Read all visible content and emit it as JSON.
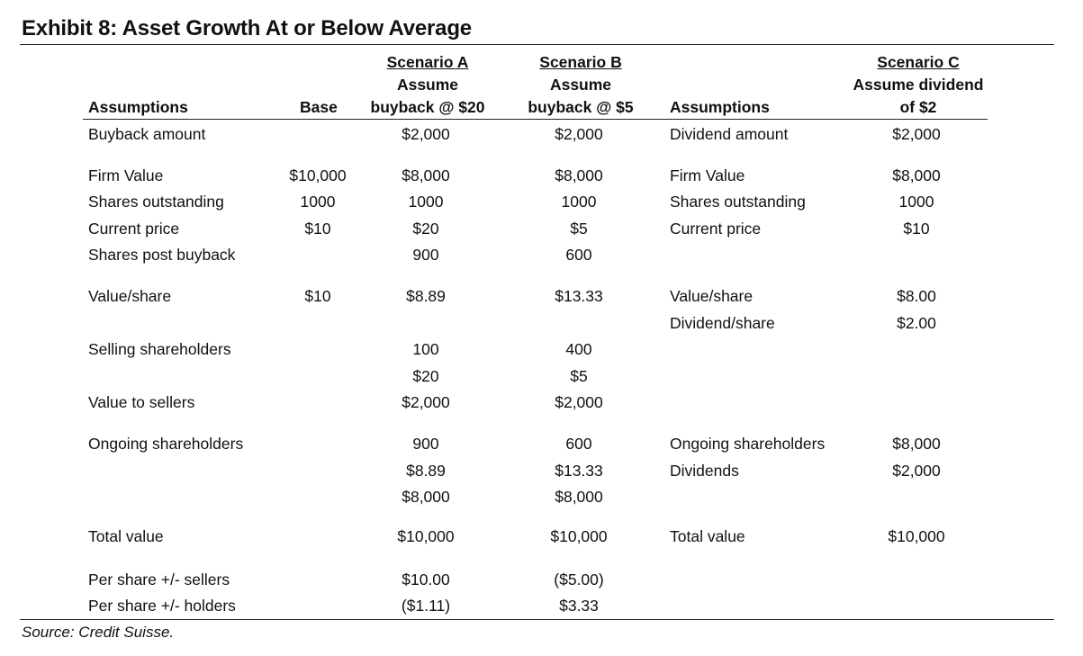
{
  "title": "Exhibit 8: Asset Growth At or Below Average",
  "source": "Source: Credit Suisse.",
  "headers": {
    "assumptions_left": "Assumptions",
    "base": "Base",
    "scenario_a": {
      "title": "Scenario A",
      "line2": "Assume",
      "line3": "buyback @ $20"
    },
    "scenario_b": {
      "title": "Scenario B",
      "line2": "Assume",
      "line3": "buyback @ $5"
    },
    "assumptions_right": "Assumptions",
    "scenario_c": {
      "title": "Scenario C",
      "line2": "Assume dividend",
      "line3": "of $2"
    }
  },
  "rows": [
    {
      "label": "Buyback amount",
      "base": "",
      "a": "$2,000",
      "b": "$2,000",
      "c_label": "Dividend amount",
      "c": "$2,000"
    },
    {
      "label": "Firm Value",
      "base": "$10,000",
      "a": "$8,000",
      "b": "$8,000",
      "c_label": "Firm Value",
      "c": "$8,000"
    },
    {
      "label": "Shares outstanding",
      "base": "1000",
      "a": "1000",
      "b": "1000",
      "c_label": "Shares outstanding",
      "c": "1000"
    },
    {
      "label": "Current price",
      "base": "$10",
      "a": "$20",
      "b": "$5",
      "c_label": "Current price",
      "c": "$10"
    },
    {
      "label": "Shares post buyback",
      "base": "",
      "a": "900",
      "b": "600",
      "c_label": "",
      "c": ""
    },
    {
      "label": "Value/share",
      "base": "$10",
      "a": "$8.89",
      "b": "$13.33",
      "c_label": "Value/share",
      "c": "$8.00"
    },
    {
      "label": "",
      "base": "",
      "a": "",
      "b": "",
      "c_label": "Dividend/share",
      "c": "$2.00"
    },
    {
      "label": "Selling shareholders",
      "base": "",
      "a": "100",
      "b": "400",
      "c_label": "",
      "c": ""
    },
    {
      "label": "",
      "base": "",
      "a": "$20",
      "b": "$5",
      "c_label": "",
      "c": ""
    },
    {
      "label": "Value to sellers",
      "base": "",
      "a": "$2,000",
      "b": "$2,000",
      "c_label": "",
      "c": ""
    },
    {
      "label": "Ongoing shareholders",
      "base": "",
      "a": "900",
      "b": "600",
      "c_label": "Ongoing shareholders",
      "c": "$8,000"
    },
    {
      "label": "",
      "base": "",
      "a": "$8.89",
      "b": "$13.33",
      "c_label": "Dividends",
      "c": "$2,000"
    },
    {
      "label": "",
      "base": "",
      "a": "$8,000",
      "b": "$8,000",
      "c_label": "",
      "c": ""
    },
    {
      "label": "Total value",
      "base": "",
      "a": "$10,000",
      "b": "$10,000",
      "c_label": "Total value",
      "c": "$10,000"
    },
    {
      "label": "Per share +/- sellers",
      "base": "",
      "a": "$10.00",
      "b": "($5.00)",
      "c_label": "",
      "c": ""
    },
    {
      "label": "Per share +/- holders",
      "base": "",
      "a": "($1.11)",
      "b": "$3.33",
      "c_label": "",
      "c": ""
    }
  ]
}
